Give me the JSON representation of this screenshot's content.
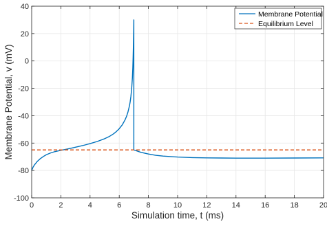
{
  "chart_data": {
    "type": "line",
    "xlabel": "Simulation time, t (ms)",
    "ylabel": "Membrane Potential, v (mV)",
    "xlim": [
      0,
      20
    ],
    "ylim": [
      -100,
      40
    ],
    "xticks": [
      0,
      2,
      4,
      6,
      8,
      10,
      12,
      14,
      16,
      18,
      20
    ],
    "yticks": [
      40,
      20,
      0,
      -20,
      -40,
      -60,
      -80,
      -100
    ],
    "grid": true,
    "legend": {
      "position": "top-right"
    },
    "series": [
      {
        "name": "Membrane Potential",
        "color": "#0072BD",
        "style": "solid",
        "points": [
          [
            0,
            -80
          ],
          [
            0.1,
            -77.5
          ],
          [
            0.2,
            -75.8
          ],
          [
            0.4,
            -73.2
          ],
          [
            0.6,
            -71.3
          ],
          [
            0.8,
            -69.8
          ],
          [
            1.0,
            -68.5
          ],
          [
            1.3,
            -67.2
          ],
          [
            1.6,
            -66.2
          ],
          [
            2.0,
            -65.3
          ],
          [
            2.5,
            -64.2
          ],
          [
            3.0,
            -63.0
          ],
          [
            3.5,
            -61.8
          ],
          [
            4.0,
            -60.4
          ],
          [
            4.5,
            -58.8
          ],
          [
            5.0,
            -56.8
          ],
          [
            5.3,
            -55.3
          ],
          [
            5.6,
            -53.3
          ],
          [
            5.8,
            -51.6
          ],
          [
            6.0,
            -49.5
          ],
          [
            6.2,
            -46.8
          ],
          [
            6.4,
            -43.0
          ],
          [
            6.5,
            -40.5
          ],
          [
            6.6,
            -37.2
          ],
          [
            6.7,
            -32.8
          ],
          [
            6.75,
            -29.8
          ],
          [
            6.8,
            -25.8
          ],
          [
            6.85,
            -20.5
          ],
          [
            6.9,
            -12.5
          ],
          [
            6.93,
            -5.0
          ],
          [
            6.95,
            2.0
          ],
          [
            6.97,
            11.0
          ],
          [
            6.99,
            22.0
          ],
          [
            7.0,
            30
          ],
          [
            7.0,
            -65
          ],
          [
            7.5,
            -66.8
          ],
          [
            8.0,
            -68.0
          ],
          [
            8.5,
            -68.9
          ],
          [
            9.0,
            -69.5
          ],
          [
            10.0,
            -70.2
          ],
          [
            11.0,
            -70.6
          ],
          [
            12.0,
            -70.8
          ],
          [
            13.0,
            -70.9
          ],
          [
            14.0,
            -71.0
          ],
          [
            16.0,
            -71.0
          ],
          [
            18.0,
            -70.9
          ],
          [
            20.0,
            -70.8
          ]
        ]
      },
      {
        "name": "Equilibrium Level",
        "color": "#D95319",
        "style": "dashed",
        "points": [
          [
            0,
            -65
          ],
          [
            20,
            -65
          ]
        ]
      }
    ]
  }
}
